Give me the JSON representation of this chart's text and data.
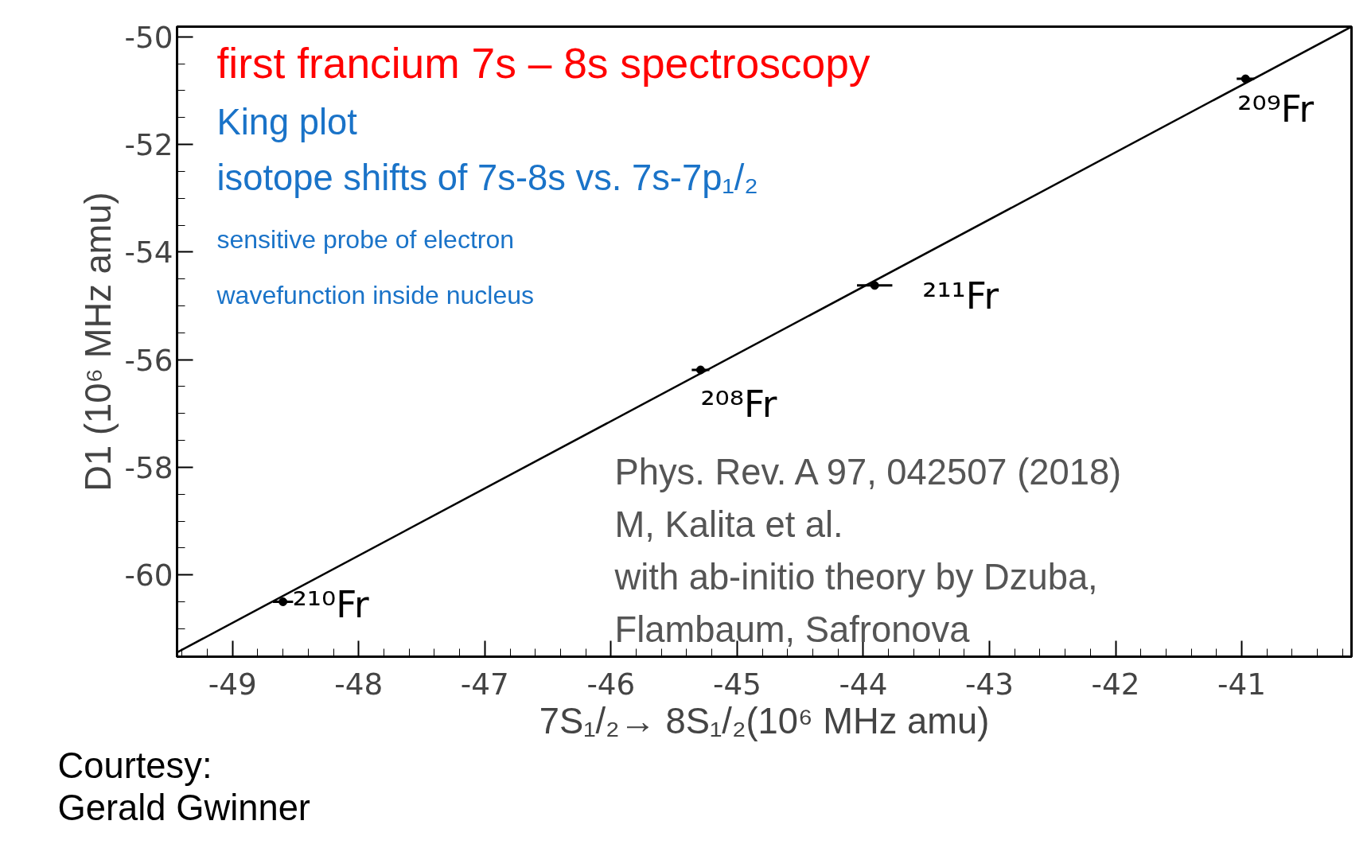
{
  "chart_data": {
    "type": "scatter",
    "title": "first francium 7s – 8s spectroscopy",
    "subtitle": "King plot",
    "xlabel": "7S₁/₂→ 8S₁/₂(10⁶ MHz amu)",
    "ylabel": "D1 (10⁶ MHz amu)",
    "xlim": [
      -49.44,
      -40.13
    ],
    "ylim": [
      -61.52,
      -49.81
    ],
    "xticks": [
      -49,
      -48,
      -47,
      -46,
      -45,
      -44,
      -43,
      -42,
      -41
    ],
    "yticks": [
      -50,
      -52,
      -54,
      -56,
      -58,
      -60
    ],
    "series": [
      {
        "color": "#000000",
        "marker": "circle",
        "x": [
          -48.6,
          -45.29,
          -43.91,
          -40.97
        ],
        "values": [
          -60.5,
          -56.19,
          -54.62,
          -50.78
        ],
        "xerrors": [
          0.08,
          0.07,
          0.14,
          0.07
        ]
      },
      {
        "type": "line",
        "color": "#000000",
        "line_style": "solid",
        "marker": "none",
        "x": [
          -49.44,
          -40.13
        ],
        "values": [
          -61.44,
          -49.81
        ]
      }
    ],
    "annotations": [
      {
        "text": "²¹⁰Fr",
        "x": -48.6,
        "y": -60.5
      },
      {
        "text": "²⁰⁸Fr",
        "x": -45.29,
        "y": -56.19
      },
      {
        "text": "²¹¹Fr",
        "x": -43.91,
        "y": -54.62
      },
      {
        "text": "²⁰⁹Fr",
        "x": -40.97,
        "y": -50.78
      },
      "isotope shifts of  7s-8s  vs. 7s-7p₁/₂",
      "sensitive probe of  electron",
      "wavefunction inside nucleus",
      "Phys. Rev. A 97, 042507 (2018)",
      "M, Kalita et al.",
      "with ab-initio theory by Dzuba,",
      "Flambaum, Safronova",
      "Courtesy:",
      "Gerald Gwinner"
    ],
    "grid": false
  }
}
